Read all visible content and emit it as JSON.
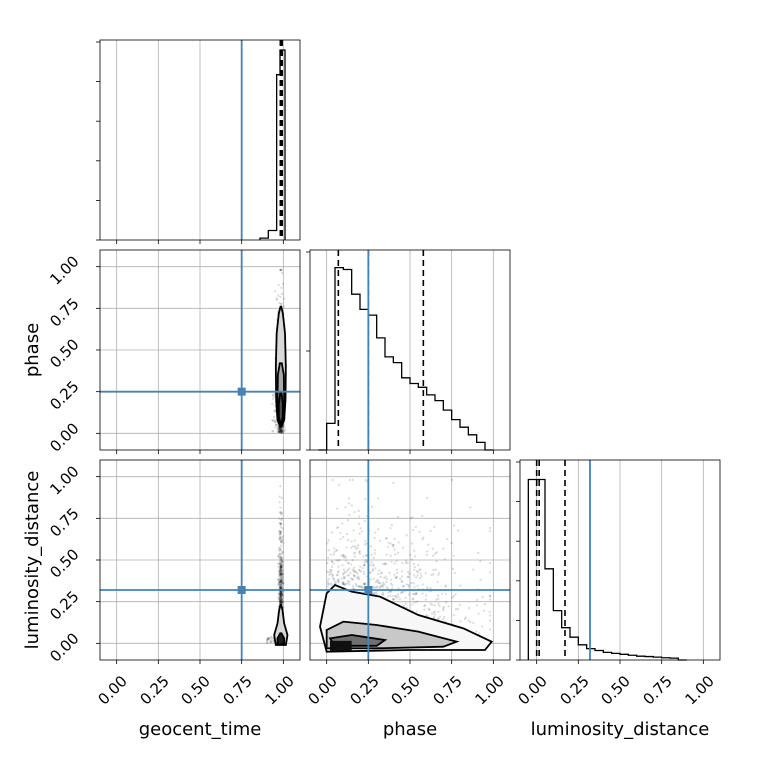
{
  "chart_data": {
    "type": "corner",
    "parameters": [
      "geocent_time",
      "phase",
      "luminosity_distance"
    ],
    "axis_range": [
      -0.1,
      1.1
    ],
    "ticks": [
      "0.00",
      "0.25",
      "0.50",
      "0.75",
      "1.00"
    ],
    "truth_values": [
      0.75,
      0.25,
      0.32
    ],
    "truth_color": "#4682b4",
    "grid": true,
    "panels": [
      {
        "type": "histogram",
        "row": 0,
        "col": 0,
        "parameter": "geocent_time",
        "quantiles": [
          0.982,
          0.988,
          0.993
        ],
        "bins": [
          {
            "x0": 0.86,
            "x1": 0.91,
            "count": 0.01
          },
          {
            "x0": 0.91,
            "x1": 0.96,
            "count": 0.05
          },
          {
            "x0": 0.96,
            "x1": 0.98,
            "count": 0.87
          },
          {
            "x0": 0.98,
            "x1": 1.01,
            "count": 1.0
          }
        ]
      },
      {
        "type": "scatter_contour",
        "row": 1,
        "col": 0,
        "x_param": "geocent_time",
        "y_param": "phase",
        "sample_x_range": [
          0.93,
          1.01
        ],
        "sample_y_range": [
          0.0,
          0.98
        ]
      },
      {
        "type": "histogram",
        "row": 1,
        "col": 1,
        "parameter": "phase",
        "quantiles": [
          0.07,
          0.25,
          0.58
        ],
        "bin_edges": [
          -0.05,
          0.0,
          0.05,
          0.1,
          0.15,
          0.2,
          0.25,
          0.3,
          0.35,
          0.4,
          0.45,
          0.5,
          0.55,
          0.6,
          0.65,
          0.7,
          0.75,
          0.8,
          0.85,
          0.9,
          0.95,
          1.0
        ],
        "counts": [
          0.0,
          0.14,
          0.96,
          0.95,
          0.82,
          0.74,
          0.71,
          0.59,
          0.49,
          0.46,
          0.38,
          0.35,
          0.33,
          0.29,
          0.26,
          0.21,
          0.16,
          0.12,
          0.08,
          0.04,
          0.0
        ]
      },
      {
        "type": "scatter_contour",
        "row": 2,
        "col": 0,
        "x_param": "geocent_time",
        "y_param": "luminosity_distance",
        "sample_x_range": [
          0.93,
          1.01
        ],
        "sample_y_range": [
          0.0,
          0.97
        ]
      },
      {
        "type": "scatter_contour",
        "row": 2,
        "col": 1,
        "x_param": "phase",
        "y_param": "luminosity_distance",
        "sample_x_range": [
          0.0,
          0.98
        ],
        "sample_y_range": [
          0.0,
          0.98
        ]
      },
      {
        "type": "histogram",
        "row": 2,
        "col": 2,
        "parameter": "luminosity_distance",
        "quantiles": [
          0.0,
          0.015,
          0.17
        ],
        "bin_edges": [
          -0.05,
          0.0,
          0.05,
          0.1,
          0.15,
          0.2,
          0.25,
          0.3,
          0.35,
          0.4,
          0.45,
          0.5,
          0.55,
          0.6,
          0.65,
          0.7,
          0.75,
          0.8,
          0.85,
          0.9
        ],
        "counts": [
          0.95,
          0.95,
          0.48,
          0.26,
          0.17,
          0.12,
          0.08,
          0.06,
          0.05,
          0.04,
          0.035,
          0.03,
          0.025,
          0.02,
          0.018,
          0.015,
          0.012,
          0.01,
          0.0
        ]
      }
    ]
  }
}
